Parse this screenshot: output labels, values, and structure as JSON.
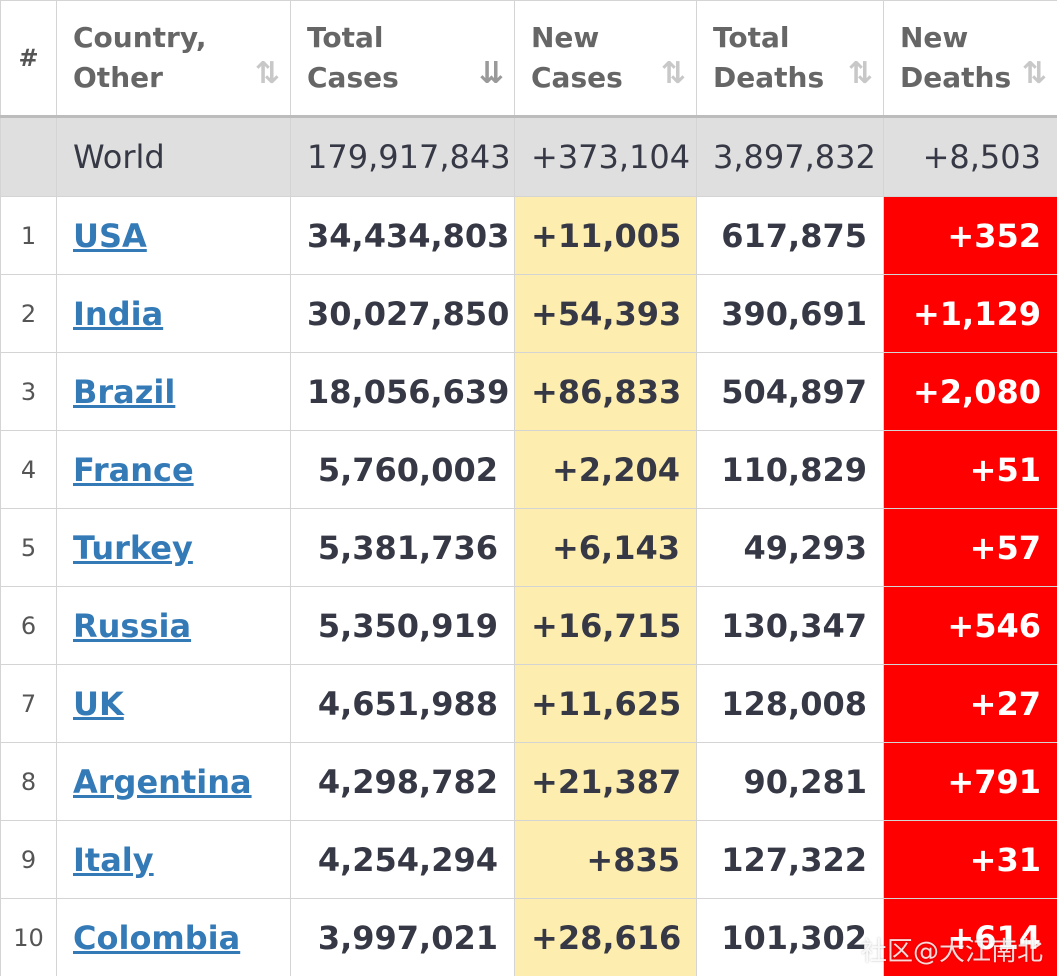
{
  "header": {
    "rank_label": "#",
    "country_label": "Country, Other",
    "total_cases_label": "Total Cases",
    "new_cases_label": "New Cases",
    "total_deaths_label": "Total Deaths",
    "new_deaths_label": "New Deaths",
    "sort_icon": "⇅",
    "sort_icon_active": "⇊"
  },
  "world": {
    "name": "World",
    "total_cases": "179,917,843",
    "new_cases": "+373,104",
    "total_deaths": "3,897,832",
    "new_deaths": "+8,503"
  },
  "rows": [
    {
      "rank": "1",
      "country": "USA",
      "total_cases": "34,434,803",
      "new_cases": "+11,005",
      "total_deaths": "617,875",
      "new_deaths": "+352"
    },
    {
      "rank": "2",
      "country": "India",
      "total_cases": "30,027,850",
      "new_cases": "+54,393",
      "total_deaths": "390,691",
      "new_deaths": "+1,129"
    },
    {
      "rank": "3",
      "country": "Brazil",
      "total_cases": "18,056,639",
      "new_cases": "+86,833",
      "total_deaths": "504,897",
      "new_deaths": "+2,080"
    },
    {
      "rank": "4",
      "country": "France",
      "total_cases": "5,760,002",
      "new_cases": "+2,204",
      "total_deaths": "110,829",
      "new_deaths": "+51"
    },
    {
      "rank": "5",
      "country": "Turkey",
      "total_cases": "5,381,736",
      "new_cases": "+6,143",
      "total_deaths": "49,293",
      "new_deaths": "+57"
    },
    {
      "rank": "6",
      "country": "Russia",
      "total_cases": "5,350,919",
      "new_cases": "+16,715",
      "total_deaths": "130,347",
      "new_deaths": "+546"
    },
    {
      "rank": "7",
      "country": "UK",
      "total_cases": "4,651,988",
      "new_cases": "+11,625",
      "total_deaths": "128,008",
      "new_deaths": "+27"
    },
    {
      "rank": "8",
      "country": "Argentina",
      "total_cases": "4,298,782",
      "new_cases": "+21,387",
      "total_deaths": "90,281",
      "new_deaths": "+791"
    },
    {
      "rank": "9",
      "country": "Italy",
      "total_cases": "4,254,294",
      "new_cases": "+835",
      "total_deaths": "127,322",
      "new_deaths": "+31"
    },
    {
      "rank": "10",
      "country": "Colombia",
      "total_cases": "3,997,021",
      "new_cases": "+28,616",
      "total_deaths": "101,302",
      "new_deaths": "+614"
    }
  ],
  "watermark": "社区@大江南北",
  "colors": {
    "new_cases_bg": "#fdeeb0",
    "new_deaths_bg": "#ff0000",
    "world_row_bg": "#dfdfdf",
    "link": "#337ab7"
  }
}
